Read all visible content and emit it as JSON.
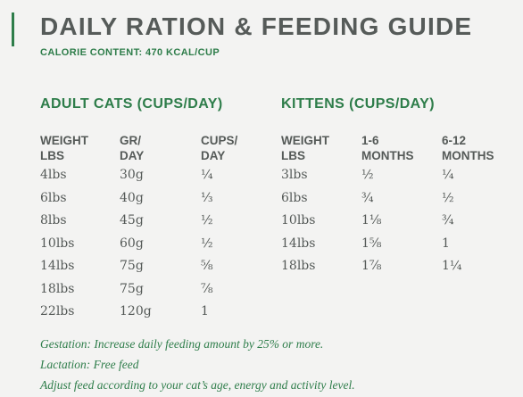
{
  "header": {
    "title": "DAILY RATION & FEEDING GUIDE",
    "subtitle": "CALORIE CONTENT: 470 KCAL/CUP"
  },
  "adult": {
    "title": "ADULT CATS (CUPS/DAY)",
    "headers": [
      {
        "l1": "WEIGHT",
        "l2": "LBS"
      },
      {
        "l1": "GR/",
        "l2": "DAY"
      },
      {
        "l1": "CUPS/",
        "l2": "DAY"
      }
    ],
    "rows": [
      [
        "4lbs",
        "30g",
        "¼"
      ],
      [
        "6lbs",
        "40g",
        "⅓"
      ],
      [
        "8lbs",
        "45g",
        "½"
      ],
      [
        "10lbs",
        "60g",
        "½"
      ],
      [
        "14lbs",
        "75g",
        "⅝"
      ],
      [
        "18lbs",
        "75g",
        "⅞"
      ],
      [
        "22lbs",
        "120g",
        "1"
      ]
    ]
  },
  "kittens": {
    "title": "KITTENS (CUPS/DAY)",
    "headers": [
      {
        "l1": "WEIGHT",
        "l2": "LBS"
      },
      {
        "l1": "1-6",
        "l2": "MONTHS"
      },
      {
        "l1": "6-12",
        "l2": "MONTHS"
      }
    ],
    "rows": [
      [
        "3lbs",
        "½",
        "¼"
      ],
      [
        "6lbs",
        "¾",
        "½"
      ],
      [
        "10lbs",
        "1⅛",
        "¾"
      ],
      [
        "14lbs",
        "1⅝",
        "1"
      ],
      [
        "18lbs",
        "1⅞",
        "1¼"
      ]
    ]
  },
  "notes": [
    "Gestation: Increase daily feeding amount by 25% or more.",
    "Lactation: Free feed",
    "Adjust feed according to your cat’s age, energy and activity level."
  ],
  "colors": {
    "accent_green": "#2e7d4a",
    "text_gray": "#555a58",
    "background": "#f3f3f2"
  }
}
